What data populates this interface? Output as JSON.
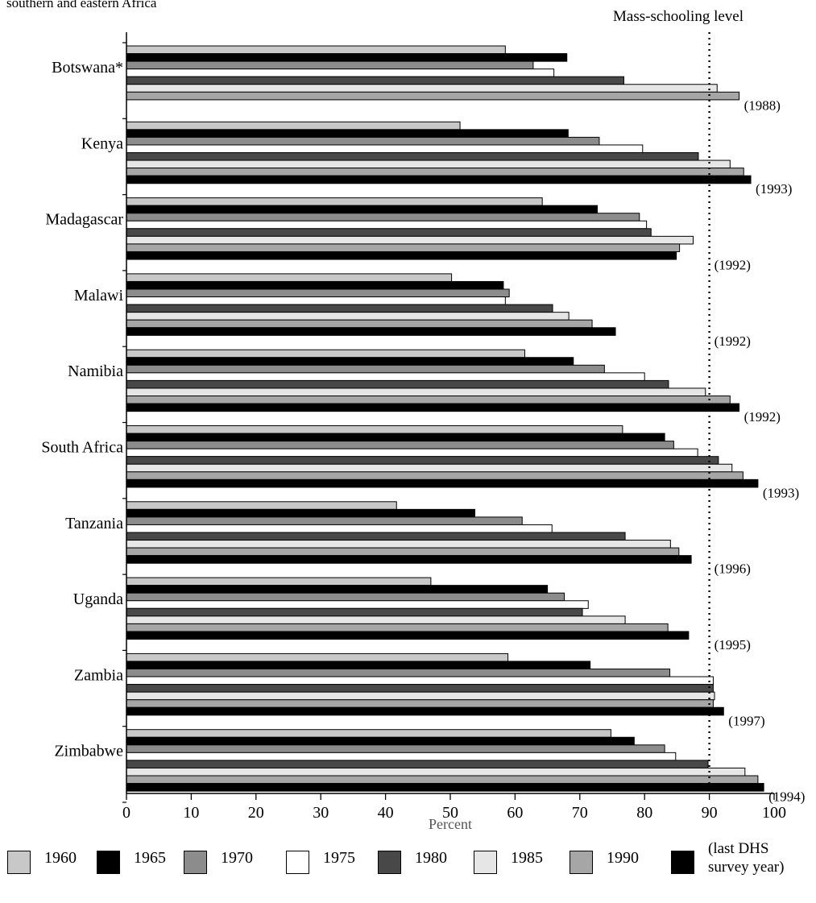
{
  "title": "southern and eastern Africa",
  "annotation": "Mass-schooling level",
  "xlabel": "Percent",
  "colors": {
    "1960": "#c8c8c8",
    "1965": "#000000",
    "1970": "#8c8c8c",
    "1975": "#ffffff",
    "1980": "#484848",
    "1985": "#e6e6e6",
    "1990": "#a6a6a6",
    "last": "#000000"
  },
  "legend": {
    "items": [
      {
        "label": "1960"
      },
      {
        "label": "1965"
      },
      {
        "label": "1970"
      },
      {
        "label": "1975"
      },
      {
        "label": "1980"
      },
      {
        "label": "1985"
      },
      {
        "label": "1990"
      },
      {
        "label_line1": "(last DHS",
        "label_line2": "survey year)"
      }
    ]
  },
  "chart_data": {
    "type": "bar",
    "orientation": "horizontal",
    "xlabel": "Percent",
    "xlim": [
      0,
      100
    ],
    "xticks": [
      0,
      10,
      20,
      30,
      40,
      50,
      60,
      70,
      80,
      90,
      100
    ],
    "reference_line": {
      "value": 90,
      "label": "Mass-schooling level",
      "style": "dotted"
    },
    "grid": false,
    "legend_position": "bottom",
    "series_keys": [
      "1960",
      "1965",
      "1970",
      "1975",
      "1980",
      "1985",
      "1990",
      "last"
    ],
    "categories": [
      {
        "name": "Botswana*",
        "values": [
          58.5,
          68,
          62.8,
          66,
          76.8,
          91.2,
          94.6,
          null
        ],
        "survey_year": "(1988)"
      },
      {
        "name": "Kenya",
        "values": [
          51.5,
          68.2,
          73,
          79.7,
          88.3,
          93.2,
          95.3,
          96.4
        ],
        "survey_year": "(1993)"
      },
      {
        "name": "Madagascar",
        "values": [
          64.2,
          72.7,
          79.2,
          80.3,
          81,
          87.5,
          85.4,
          84.9
        ],
        "survey_year": "(1992)"
      },
      {
        "name": "Malawi",
        "values": [
          50.2,
          58.2,
          59.1,
          58.5,
          65.8,
          68.3,
          71.9,
          75.5
        ],
        "survey_year": "(1992)"
      },
      {
        "name": "Namibia",
        "values": [
          61.5,
          69,
          73.8,
          80,
          83.7,
          89.4,
          93.2,
          94.6
        ],
        "survey_year": "(1992)"
      },
      {
        "name": "South Africa",
        "values": [
          76.6,
          83.1,
          84.5,
          88.2,
          91.4,
          93.5,
          95.2,
          97.5
        ],
        "survey_year": "(1993)"
      },
      {
        "name": "Tanzania",
        "values": [
          41.7,
          53.8,
          61.1,
          65.7,
          77,
          84,
          85.3,
          87.2
        ],
        "survey_year": "(1996)"
      },
      {
        "name": "Uganda",
        "values": [
          47,
          65,
          67.6,
          71.3,
          70.4,
          77,
          83.6,
          86.8
        ],
        "survey_year": "(1995)"
      },
      {
        "name": "Zambia",
        "values": [
          58.9,
          71.6,
          83.9,
          90.6,
          90.6,
          90.8,
          90.6,
          92.2
        ],
        "survey_year": "(1997)"
      },
      {
        "name": "Zimbabwe",
        "values": [
          74.8,
          78.4,
          83.1,
          84.8,
          89.8,
          95.5,
          97.5,
          98.4
        ],
        "survey_year": "(1994)"
      }
    ]
  }
}
